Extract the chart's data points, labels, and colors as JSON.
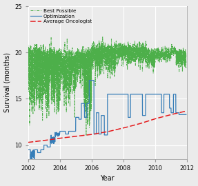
{
  "title": "",
  "xlabel": "Year",
  "ylabel": "Survival (months)",
  "xlim": [
    2002,
    2012
  ],
  "ylim": [
    8.5,
    25
  ],
  "yticks": [
    10,
    15,
    20,
    25
  ],
  "xticks": [
    2002,
    2004,
    2006,
    2008,
    2010,
    2012
  ],
  "legend_labels": [
    "Best Possible",
    "Optimization",
    "Average Oncologist"
  ],
  "line_colors": [
    "#4daf4a",
    "#377eb8",
    "#e41a1c"
  ],
  "line_styles": [
    "-.",
    "-",
    "--"
  ],
  "background_color": "#ebebeb",
  "grid_color": "#ffffff",
  "avg_onc_x": [
    2002,
    2003,
    2004,
    2005,
    2006,
    2007,
    2008,
    2009,
    2010,
    2011,
    2012
  ],
  "avg_onc_y": [
    10.3,
    10.5,
    10.75,
    10.95,
    11.15,
    11.45,
    11.85,
    12.3,
    12.85,
    13.3,
    13.7
  ]
}
